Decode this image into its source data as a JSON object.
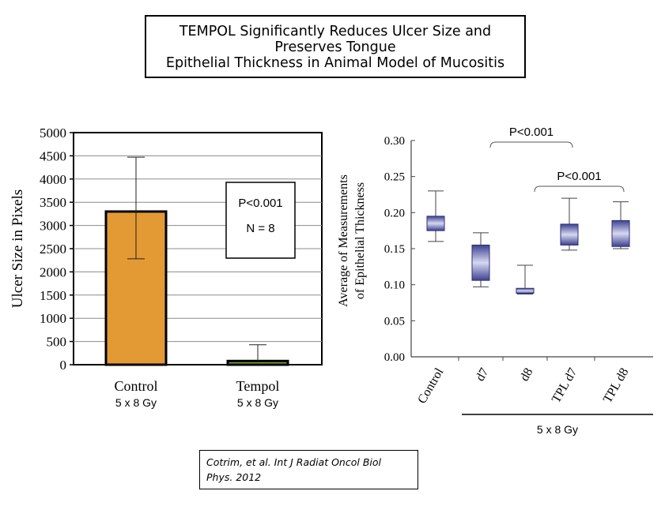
{
  "title": {
    "line1": "TEMPOL Significantly Reduces Ulcer Size and",
    "line2": "Preserves Tongue",
    "line3": "Epithelial Thickness in Animal Model of Mucositis"
  },
  "chart_data": [
    {
      "type": "bar",
      "ylabel": "Ulcer Size in Pixels",
      "ylim": [
        0,
        5000
      ],
      "yticks": [
        "0",
        "500",
        "1000",
        "1500",
        "2000",
        "2500",
        "3000",
        "3500",
        "4000",
        "4500",
        "5000"
      ],
      "grid": true,
      "categories": [
        "Control",
        "Tempol"
      ],
      "category_sublabels": [
        "5 x 8 Gy",
        "5 x 8 Gy"
      ],
      "values": [
        3300,
        80
      ],
      "error_low": [
        2280,
        80
      ],
      "error_high": [
        4470,
        430
      ],
      "colors": [
        "#e39a35",
        "#7aa33a"
      ],
      "annotation": {
        "line1": "P<0.001",
        "line2": "N = 8"
      }
    },
    {
      "type": "box",
      "ylabel_line1": "Average of Measurements",
      "ylabel_line2": "of Epithelial Thickness",
      "ylim": [
        0,
        0.3
      ],
      "yticks": [
        "0.00",
        "0.05",
        "0.10",
        "0.15",
        "0.20",
        "0.25",
        "0.30"
      ],
      "categories": [
        "Control",
        "d7",
        "d8",
        "TPL d7",
        "TPL d8"
      ],
      "boxes": [
        {
          "min": 0.16,
          "q1": 0.175,
          "q3": 0.195,
          "max": 0.23
        },
        {
          "min": 0.097,
          "q1": 0.106,
          "q3": 0.155,
          "max": 0.172
        },
        {
          "min": 0.087,
          "q1": 0.088,
          "q3": 0.095,
          "max": 0.127
        },
        {
          "min": 0.148,
          "q1": 0.155,
          "q3": 0.184,
          "max": 0.22
        },
        {
          "min": 0.15,
          "q1": 0.153,
          "q3": 0.189,
          "max": 0.215
        }
      ],
      "box_color": "#5b5fa6",
      "brackets": [
        {
          "from": 1,
          "to": 3,
          "label": "P<0.001"
        },
        {
          "from": 2,
          "to": 4,
          "label": "P<0.001"
        }
      ],
      "group_label": "5 x 8 Gy"
    }
  ],
  "citation": {
    "line1": "Cotrim, et al. Int J Radiat Oncol Biol",
    "line2": "Phys. 2012"
  }
}
